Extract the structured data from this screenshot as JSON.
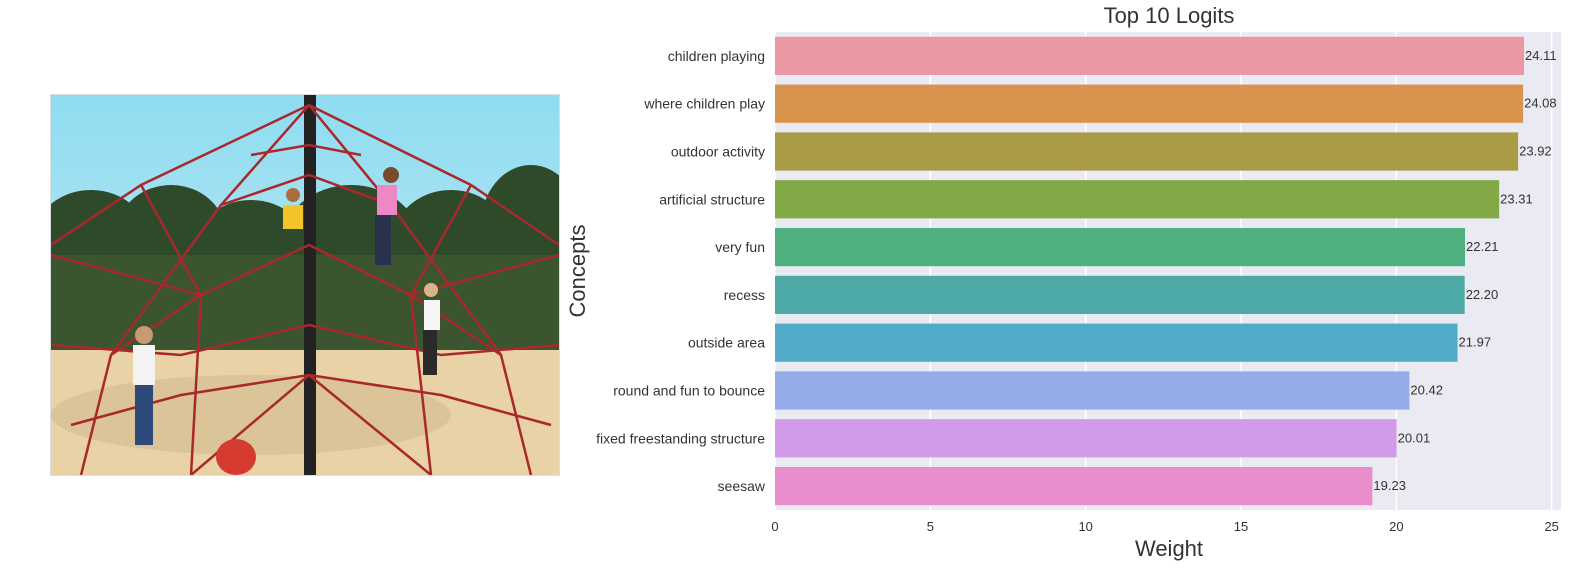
{
  "photo": {
    "icon": "playground-photo-icon",
    "sky_color": "#8fdcf0",
    "ground_color": "#e9d2a6",
    "rope_color": "#a8282c"
  },
  "chart_data": {
    "type": "bar",
    "orientation": "horizontal",
    "title": "Top 10 Logits",
    "xlabel": "Weight",
    "ylabel": "Concepts",
    "xlim": [
      0,
      25
    ],
    "xticks": [
      0,
      5,
      10,
      15,
      20,
      25
    ],
    "grid": true,
    "categories": [
      "children playing",
      "where children play",
      "outdoor activity",
      "artificial structure",
      "very fun",
      "recess",
      "outside area",
      "round and fun to bounce",
      "fixed freestanding structure",
      "seesaw"
    ],
    "values": [
      24.11,
      24.08,
      23.92,
      23.31,
      22.21,
      22.2,
      21.97,
      20.42,
      20.01,
      19.23
    ],
    "value_labels": [
      "24.11",
      "24.08",
      "23.92",
      "23.31",
      "22.21",
      "22.20",
      "21.97",
      "20.42",
      "20.01",
      "19.23"
    ],
    "colors": [
      "#ea96a3",
      "#d8934d",
      "#aa9c47",
      "#82a946",
      "#4faf7f",
      "#4eaaa6",
      "#52acc7",
      "#94acea",
      "#d19be8",
      "#e98dcc"
    ],
    "background": "#eaeaf2"
  }
}
